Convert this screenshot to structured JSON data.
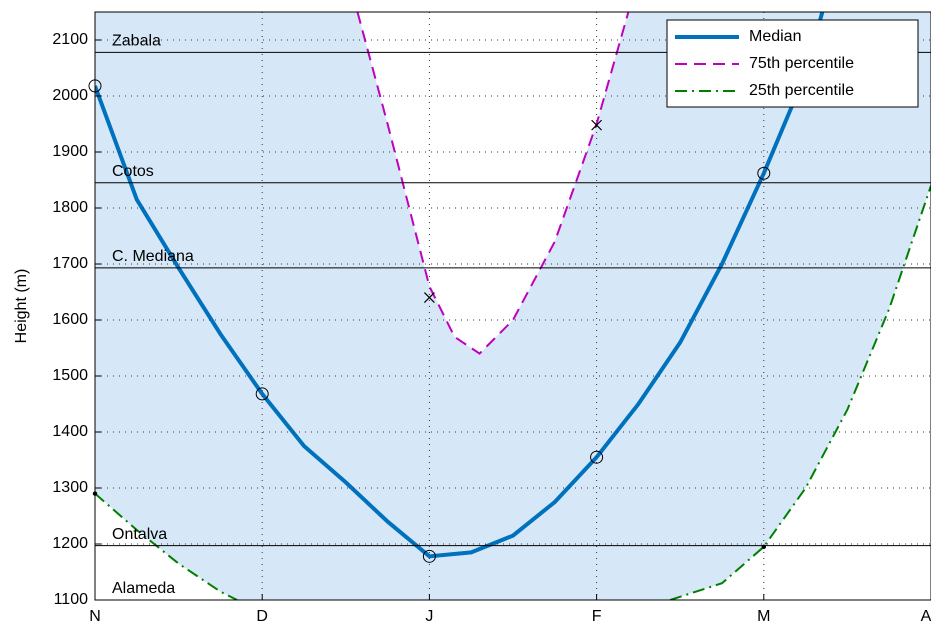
{
  "chart_data": {
    "type": "line",
    "ylabel": "Height (m)",
    "xlim": [
      0,
      5
    ],
    "xticks": [
      {
        "value": 0,
        "label": "N"
      },
      {
        "value": 1,
        "label": "D"
      },
      {
        "value": 2,
        "label": "J"
      },
      {
        "value": 3,
        "label": "F"
      },
      {
        "value": 4,
        "label": "M"
      },
      {
        "value": 5,
        "label": "A"
      }
    ],
    "ylim": [
      1100,
      2150
    ],
    "yticks": [
      1100,
      1200,
      1300,
      1400,
      1500,
      1600,
      1700,
      1800,
      1900,
      2000,
      2100
    ],
    "grid": true,
    "legend": "upper right",
    "band_color": "#d6e8f8",
    "series": [
      {
        "name": "Median",
        "color": "#0072bd",
        "dash": "solid",
        "x": [
          0,
          0.25,
          0.5,
          0.75,
          1,
          1.25,
          1.5,
          1.75,
          2,
          2.25,
          2.5,
          2.75,
          3,
          3.25,
          3.5,
          3.75,
          4,
          4.25,
          4.35
        ],
        "values": [
          2018,
          1815,
          1693,
          1575,
          1468,
          1375,
          1310,
          1240,
          1178,
          1185,
          1215,
          1275,
          1355,
          1450,
          1560,
          1700,
          1862,
          2040,
          2150
        ]
      },
      {
        "name": "75th percentile",
        "color": "#bf00bf",
        "dash": "dashed",
        "x": [
          1.57,
          1.75,
          2,
          2.15,
          2.3,
          2.5,
          2.75,
          3,
          3.19
        ],
        "values": [
          2150,
          1950,
          1660,
          1570,
          1540,
          1600,
          1740,
          1950,
          2150
        ]
      },
      {
        "name": "25th percentile",
        "color": "#008000",
        "dash": "dashdot",
        "x": [
          0,
          0.25,
          0.5,
          0.75,
          0.85,
          2,
          3.44,
          3.75,
          4,
          4.25,
          4.5,
          4.75,
          5
        ],
        "values": [
          1290,
          1225,
          1165,
          1115,
          1100,
          null,
          1100,
          1130,
          1195,
          1300,
          1440,
          1620,
          1840
        ]
      }
    ],
    "points": [
      {
        "marker": "circle",
        "x": [
          0,
          1,
          2,
          3,
          4
        ],
        "values": [
          2018,
          1468,
          1178,
          1355,
          1862
        ]
      },
      {
        "marker": "cross",
        "x": [
          2,
          3
        ],
        "values": [
          1640,
          1948
        ]
      },
      {
        "marker": "dot",
        "x": [
          0,
          4
        ],
        "values": [
          1290,
          1195
        ]
      }
    ],
    "levels": [
      {
        "label": "Zabala",
        "value": 2078
      },
      {
        "label": "Cotos",
        "value": 1845
      },
      {
        "label": "C. Mediana",
        "value": 1693
      },
      {
        "label": "Ontalva",
        "value": 1197
      },
      {
        "label": "Alameda",
        "value": 1100
      }
    ]
  }
}
